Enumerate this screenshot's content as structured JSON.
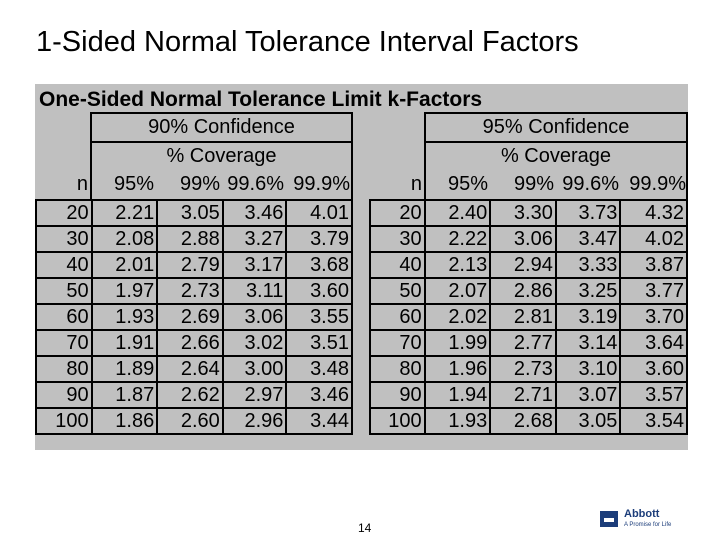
{
  "slide": {
    "title": "1-Sided Normal Tolerance Interval Factors",
    "page_number": "14"
  },
  "table": {
    "title": "One-Sided Normal Tolerance Limit k-Factors",
    "coverage_label": "% Coverage",
    "n_label": "n",
    "coverage_columns": [
      "95%",
      "99%",
      "99.6%",
      "99.9%"
    ],
    "groups": [
      {
        "confidence": "90% Confidence",
        "rows": [
          [
            "20",
            "2.21",
            "3.05",
            "3.46",
            "4.01"
          ],
          [
            "30",
            "2.08",
            "2.88",
            "3.27",
            "3.79"
          ],
          [
            "40",
            "2.01",
            "2.79",
            "3.17",
            "3.68"
          ],
          [
            "50",
            "1.97",
            "2.73",
            "3.11",
            "3.60"
          ],
          [
            "60",
            "1.93",
            "2.69",
            "3.06",
            "3.55"
          ],
          [
            "70",
            "1.91",
            "2.66",
            "3.02",
            "3.51"
          ],
          [
            "80",
            "1.89",
            "2.64",
            "3.00",
            "3.48"
          ],
          [
            "90",
            "1.87",
            "2.62",
            "2.97",
            "3.46"
          ],
          [
            "100",
            "1.86",
            "2.60",
            "2.96",
            "3.44"
          ]
        ]
      },
      {
        "confidence": "95% Confidence",
        "rows": [
          [
            "20",
            "2.40",
            "3.30",
            "3.73",
            "4.32"
          ],
          [
            "30",
            "2.22",
            "3.06",
            "3.47",
            "4.02"
          ],
          [
            "40",
            "2.13",
            "2.94",
            "3.33",
            "3.87"
          ],
          [
            "50",
            "2.07",
            "2.86",
            "3.25",
            "3.77"
          ],
          [
            "60",
            "2.02",
            "2.81",
            "3.19",
            "3.70"
          ],
          [
            "70",
            "1.99",
            "2.77",
            "3.14",
            "3.64"
          ],
          [
            "80",
            "1.96",
            "2.73",
            "3.10",
            "3.60"
          ],
          [
            "90",
            "1.94",
            "2.71",
            "3.07",
            "3.57"
          ],
          [
            "100",
            "1.93",
            "2.68",
            "3.05",
            "3.54"
          ]
        ]
      }
    ]
  },
  "logo": {
    "name": "Abbott",
    "tagline": "A Promise for Life",
    "color": "#1c3d7a"
  }
}
